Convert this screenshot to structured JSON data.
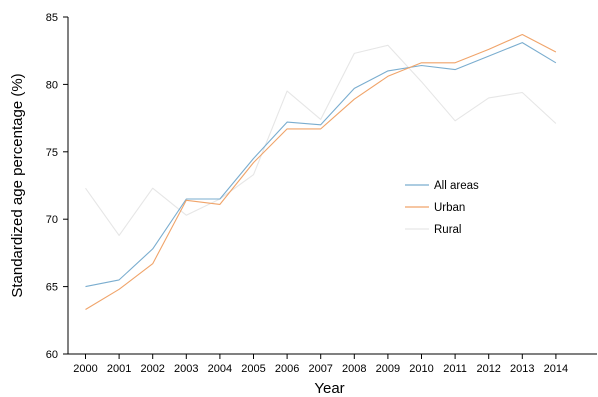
{
  "chart_data": {
    "type": "line",
    "title": "",
    "xlabel": "Year",
    "ylabel": "Standardized age percentage (%)",
    "ylim": [
      60,
      85
    ],
    "yticks": [
      60,
      65,
      70,
      75,
      80,
      85
    ],
    "grid": false,
    "legend_position": "center-right",
    "x": [
      "2000",
      "2001",
      "2002",
      "2003",
      "2004",
      "2005",
      "2006",
      "2007",
      "2008",
      "2009",
      "2010",
      "2011",
      "2012",
      "2013",
      "2014"
    ],
    "series": [
      {
        "name": "All areas",
        "color": "#7aadcf",
        "values": [
          65.0,
          65.5,
          67.8,
          71.5,
          71.5,
          74.5,
          77.2,
          77.0,
          79.7,
          81.0,
          81.4,
          81.1,
          82.1,
          83.1,
          81.6
        ]
      },
      {
        "name": "Urban",
        "color": "#f0a46a",
        "values": [
          63.3,
          64.8,
          66.7,
          71.4,
          71.1,
          74.2,
          76.7,
          76.7,
          78.9,
          80.6,
          81.6,
          81.6,
          82.6,
          83.7,
          82.4
        ]
      },
      {
        "name": "Rural",
        "color": "#e6e6e6",
        "values": [
          72.3,
          68.8,
          72.3,
          70.3,
          71.5,
          73.3,
          79.5,
          77.4,
          82.3,
          82.9,
          80.2,
          77.3,
          79.0,
          79.4,
          77.1
        ]
      }
    ]
  }
}
